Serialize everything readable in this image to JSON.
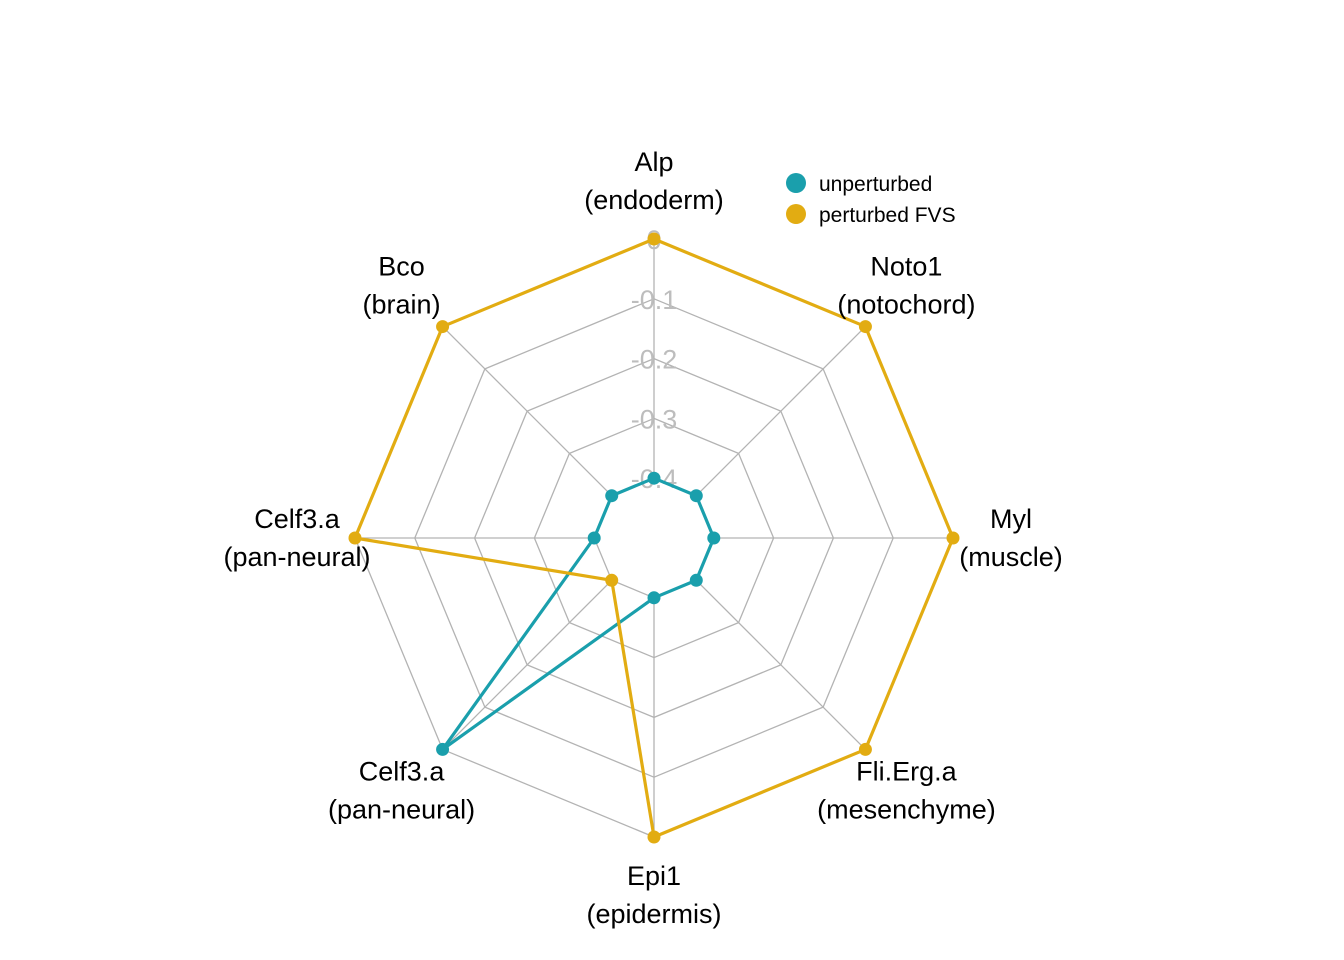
{
  "chart_data": {
    "type": "radar",
    "axes": [
      {
        "name": "Alp",
        "group": "(endoderm)"
      },
      {
        "name": "Noto1",
        "group": "(notochord)"
      },
      {
        "name": "Myl",
        "group": "(muscle)"
      },
      {
        "name": "Fli.Erg.a",
        "group": "(mesenchyme)"
      },
      {
        "name": "Epi1",
        "group": "(epidermis)"
      },
      {
        "name": "Celf3.a",
        "group": "(pan-neural)"
      },
      {
        "name": "Celf3.a",
        "group": "(pan-neural)"
      },
      {
        "name": "Bco",
        "group": "(brain)"
      }
    ],
    "rlim": [
      -0.5,
      0
    ],
    "ticks": [
      0,
      -0.1,
      -0.2,
      -0.3,
      -0.4
    ],
    "tick_labels": [
      "0",
      "-0.1",
      "-0.2",
      "-0.3",
      "-0.4"
    ],
    "series": [
      {
        "name": "unperturbed",
        "color": "#1a9fac",
        "values": [
          -0.4,
          -0.4,
          -0.4,
          -0.4,
          -0.4,
          0.0,
          -0.4,
          -0.4
        ]
      },
      {
        "name": "perturbed FVS",
        "color": "#e2ac12",
        "values": [
          0.0,
          0.0,
          0.0,
          0.0,
          0.0,
          -0.4,
          0.0,
          0.0
        ]
      }
    ],
    "grid": true,
    "grid_color": "#b3b3b3",
    "legend_position": "top-right"
  }
}
